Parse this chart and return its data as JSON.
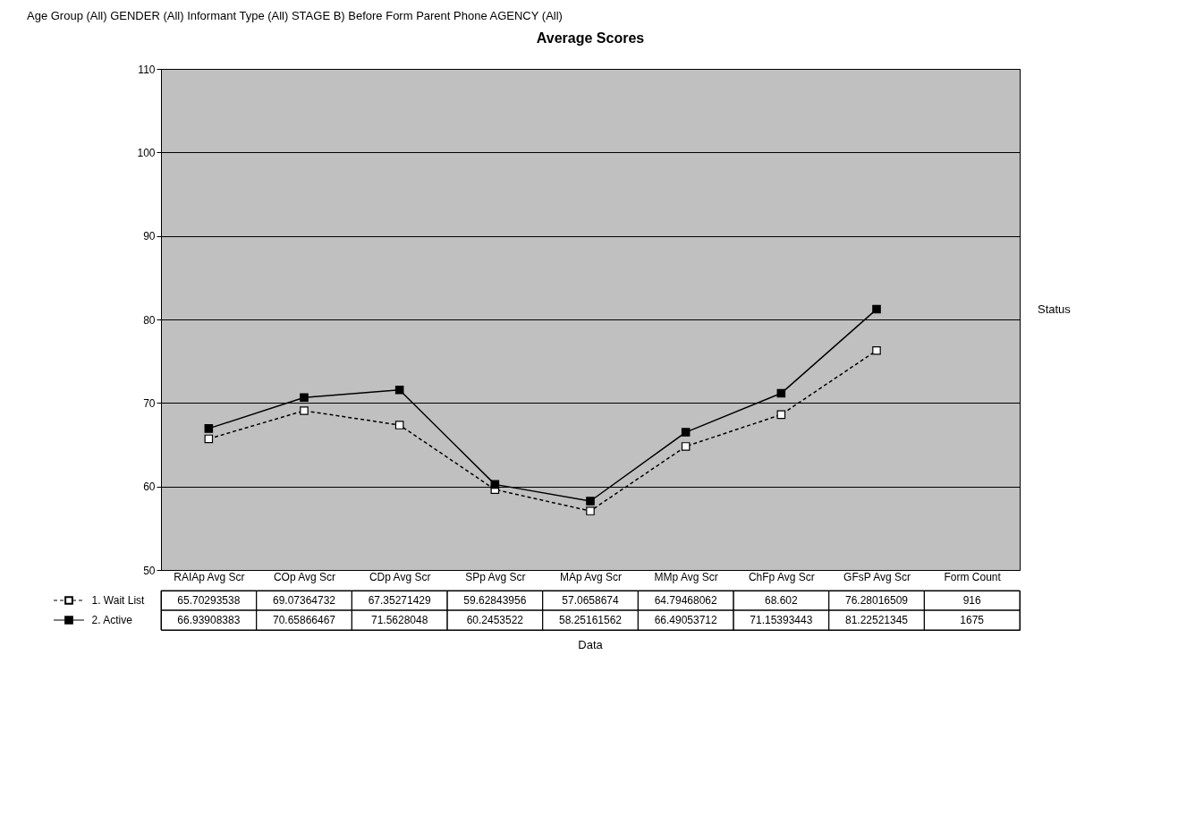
{
  "chart_data": {
    "type": "line",
    "title": "Average Scores",
    "categories": [
      "RAIAp Avg Scr",
      "COp Avg Scr",
      "CDp Avg Scr",
      "SPp Avg Scr",
      "MAp Avg Scr",
      "MMp Avg Scr",
      "ChFp Avg Scr",
      "GFsP Avg Scr",
      "Form Count"
    ],
    "series": [
      {
        "name": "1. Wait List",
        "color": "#000000",
        "line_style": "dashed",
        "marker": "square",
        "values": [
          65.70293538,
          69.07364732,
          67.35271429,
          59.62843956,
          57.0658674,
          64.79468062,
          68.602,
          76.28016509,
          null
        ],
        "value_labels": [
          "65.70293538",
          "69.07364732",
          "67.35271429",
          "59.62843956",
          "57.0658674",
          "64.79468062",
          "68.602",
          "76.28016509",
          "916"
        ]
      },
      {
        "name": "2. Active",
        "color": "#000000",
        "line_style": "solid",
        "marker": "square",
        "values": [
          66.93908383,
          70.65866467,
          71.5628048,
          60.2453522,
          58.25161562,
          66.49053712,
          71.15393443,
          81.22521345,
          null
        ],
        "value_labels": [
          "66.93908383",
          "70.65866467",
          "71.5628048",
          "60.2453522",
          "58.25161562",
          "66.49053712",
          "71.15393443",
          "81.22521345",
          "1675"
        ]
      }
    ],
    "ylim": [
      50,
      110
    ],
    "yticks": [
      50,
      60,
      70,
      80,
      90,
      100,
      110
    ],
    "grid": "y",
    "legend": "bottom left",
    "annotations": [
      "Age Group (All) GENDER (All) Informant Type (All) STAGE B) Before Form Parent Phone AGENCY (All)",
      "Status",
      "Data"
    ]
  }
}
